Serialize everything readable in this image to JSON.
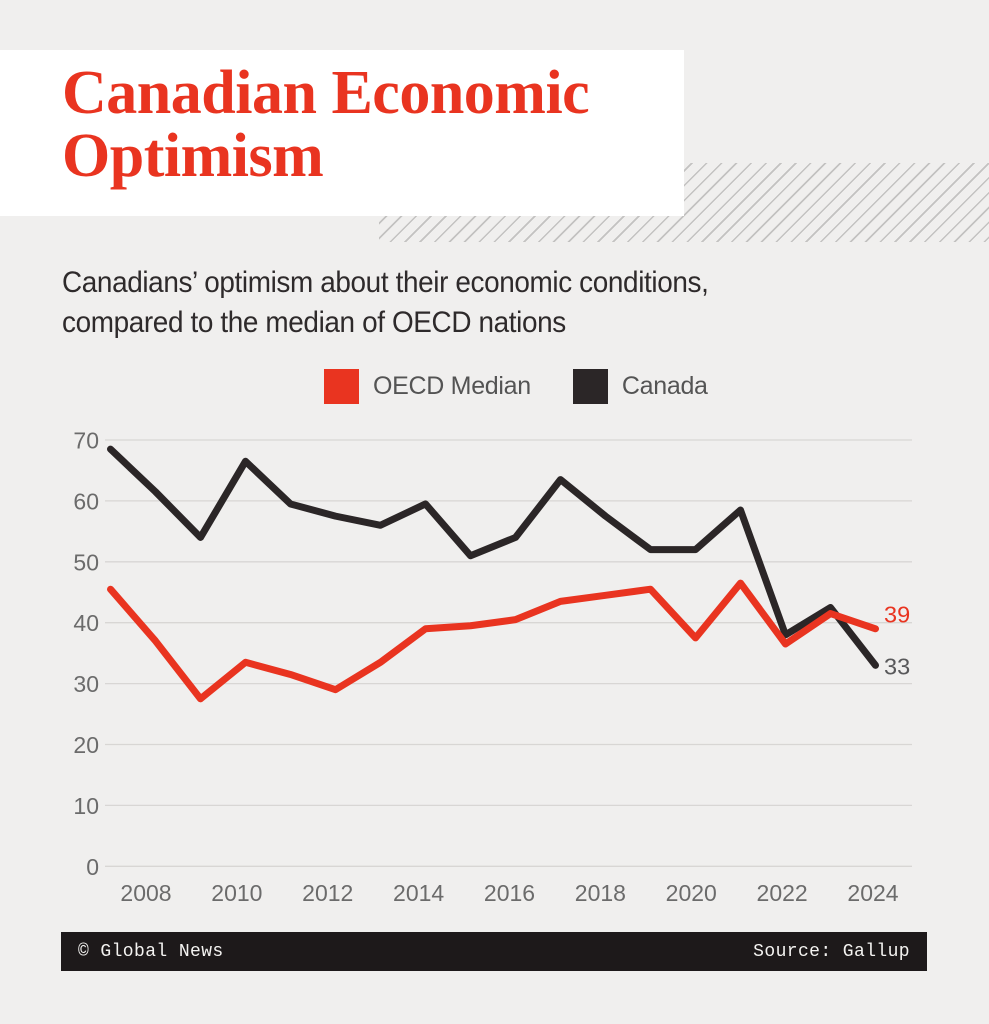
{
  "page": {
    "background": "#f0efee",
    "card_background": "#ffffff",
    "hatch_color": "#c3c2c1"
  },
  "header": {
    "title": "Canadian Economic\nOptimism",
    "color": "#e93420"
  },
  "subtitle": {
    "text": "Canadians’ optimism about their economic conditions,\ncompared to the median of OECD nations"
  },
  "legend": {
    "items": [
      {
        "label": "OECD Median",
        "color": "#e93420"
      },
      {
        "label": "Canada",
        "color": "#2b2627"
      }
    ]
  },
  "chart_data": {
    "type": "line",
    "title": "Canadian Economic Optimism",
    "x": [
      2007,
      2008,
      2009,
      2010,
      2011,
      2012,
      2013,
      2014,
      2015,
      2016,
      2017,
      2018,
      2019,
      2020,
      2021,
      2022,
      2023,
      2024
    ],
    "series": [
      {
        "name": "OECD Median",
        "color": "#e93420",
        "values": [
          45.5,
          37,
          27.5,
          33.5,
          31.5,
          29,
          33.5,
          39,
          39.5,
          40.5,
          43.5,
          44.5,
          45.5,
          37.5,
          46.5,
          36.5,
          41.5,
          39
        ],
        "end_label": "39",
        "end_label_color": "#e93420"
      },
      {
        "name": "Canada",
        "color": "#2b2627",
        "values": [
          68.5,
          61.5,
          54,
          66.5,
          59.5,
          57.5,
          56,
          59.5,
          51,
          54,
          63.5,
          57.5,
          52,
          52,
          58.5,
          38,
          42.5,
          33
        ],
        "end_label": "33",
        "end_label_color": "#58585a"
      }
    ],
    "ylim": [
      0,
      70
    ],
    "yticks": [
      70,
      60,
      50,
      40,
      30,
      20,
      10,
      0
    ],
    "xtick_labels": [
      "2008",
      "2010",
      "2012",
      "2014",
      "2016",
      "2018",
      "2020",
      "2022",
      "2024"
    ],
    "grid": "horizontal",
    "grid_color": "#d8d6d4",
    "tick_label_color": "#6b6b6b",
    "legend_position": "top-center"
  },
  "footer": {
    "credit": "© Global News",
    "source": "Source: Gallup",
    "background": "#1d191a",
    "color": "#f4f3f1"
  }
}
